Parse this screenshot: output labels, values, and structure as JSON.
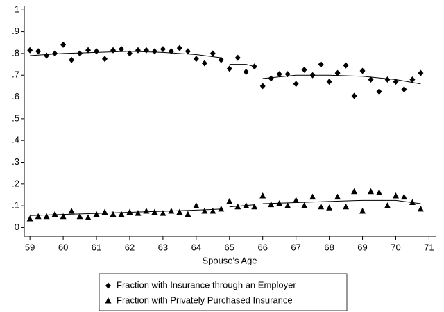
{
  "chart_data": {
    "type": "scatter",
    "x_label": "Spouse's Age",
    "x": [
      59,
      59.25,
      59.5,
      59.75,
      60,
      60.25,
      60.5,
      60.75,
      61,
      61.25,
      61.5,
      61.75,
      62,
      62.25,
      62.5,
      62.75,
      63,
      63.25,
      63.5,
      63.75,
      64,
      64.25,
      64.5,
      64.75,
      65,
      65.25,
      65.5,
      65.75,
      66,
      66.25,
      66.5,
      66.75,
      67,
      67.25,
      67.5,
      67.75,
      68,
      68.25,
      68.5,
      68.75,
      69,
      69.25,
      69.5,
      69.75,
      70,
      70.25,
      70.5,
      70.75
    ],
    "series": [
      {
        "name": "Fraction with Insurance through an Employer",
        "color": "#000000",
        "marker": "diamond",
        "values": [
          0.815,
          0.81,
          0.79,
          0.8,
          0.84,
          0.77,
          0.8,
          0.815,
          0.81,
          0.775,
          0.815,
          0.82,
          0.8,
          0.815,
          0.815,
          0.81,
          0.82,
          0.81,
          0.825,
          0.81,
          0.775,
          0.755,
          0.8,
          0.77,
          0.73,
          0.78,
          0.715,
          0.74,
          0.65,
          0.685,
          0.705,
          0.705,
          0.66,
          0.725,
          0.7,
          0.75,
          0.67,
          0.71,
          0.745,
          0.605,
          0.72,
          0.68,
          0.625,
          0.68,
          0.67,
          0.635,
          0.68,
          0.71
        ],
        "fit": {
          "x": [
            59,
            60,
            61,
            62,
            63,
            64,
            64.75,
            null,
            65,
            65.5,
            65.75,
            null,
            66,
            67,
            68,
            69,
            70,
            70.75
          ],
          "values": [
            0.79,
            0.8,
            0.805,
            0.81,
            0.805,
            0.795,
            0.78,
            null,
            0.75,
            0.75,
            0.74,
            null,
            0.685,
            0.7,
            0.7,
            0.695,
            0.68,
            0.66
          ]
        }
      },
      {
        "name": "Fraction with Privately Purchased Insurance",
        "color": "#000000",
        "marker": "triangle",
        "values": [
          0.04,
          0.05,
          0.05,
          0.06,
          0.05,
          0.075,
          0.05,
          0.045,
          0.06,
          0.07,
          0.06,
          0.06,
          0.07,
          0.065,
          0.075,
          0.07,
          0.065,
          0.075,
          0.07,
          0.06,
          0.1,
          0.075,
          0.075,
          0.085,
          0.12,
          0.095,
          0.1,
          0.095,
          0.145,
          0.105,
          0.11,
          0.1,
          0.125,
          0.1,
          0.14,
          0.095,
          0.09,
          0.14,
          0.095,
          0.165,
          0.075,
          0.165,
          0.16,
          0.1,
          0.145,
          0.14,
          0.115,
          0.085
        ],
        "fit": {
          "x": [
            59,
            60,
            61,
            62,
            63,
            64,
            64.75,
            null,
            65,
            65.75,
            null,
            66,
            67,
            68,
            69,
            70,
            70.75
          ],
          "values": [
            0.055,
            0.06,
            0.065,
            0.07,
            0.075,
            0.08,
            0.085,
            null,
            0.095,
            0.105,
            null,
            0.11,
            0.115,
            0.12,
            0.125,
            0.125,
            0.11
          ]
        }
      }
    ],
    "xlim": [
      58.83,
      71.2
    ],
    "xticks": [
      59,
      60,
      61,
      62,
      63,
      64,
      65,
      66,
      67,
      68,
      69,
      70,
      71
    ],
    "ylim": [
      -0.04,
      1.02
    ],
    "yticks": [
      0,
      {
        "value": 0.1,
        "label": ".1"
      },
      {
        "value": 0.2,
        "label": ".2"
      },
      {
        "value": 0.3,
        "label": ".3"
      },
      {
        "value": 0.4,
        "label": ".4"
      },
      {
        "value": 0.5,
        "label": ".5"
      },
      {
        "value": 0.6,
        "label": ".6"
      },
      {
        "value": 0.7,
        "label": ".7"
      },
      {
        "value": 0.8,
        "label": ".8"
      },
      {
        "value": 0.9,
        "label": ".9"
      },
      1
    ],
    "legend": "bottom"
  }
}
